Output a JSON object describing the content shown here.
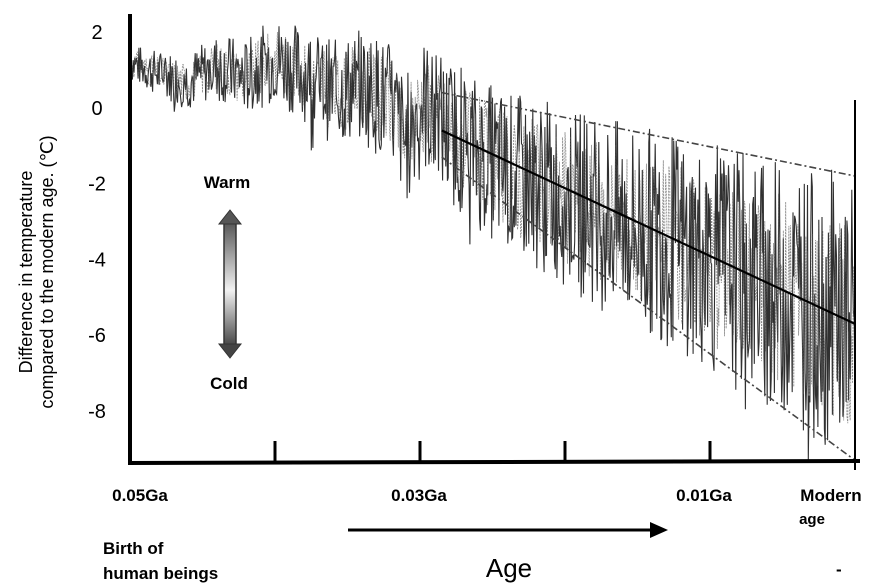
{
  "chart_data": {
    "type": "line",
    "title": "",
    "xlabel": "Age",
    "ylabel_lines": [
      "Difference in temperature",
      "compared to the modern age. (℃)"
    ],
    "ylim": [
      -9.3,
      2.4
    ],
    "y_ticks": [
      2,
      0,
      -2,
      -4,
      -6,
      -8
    ],
    "x_ticks": [
      {
        "value": 0.05,
        "label": "0.05Ga"
      },
      {
        "value": 0.03,
        "label": "0.03Ga"
      },
      {
        "value": 0.01,
        "label": "0.01Ga"
      },
      {
        "value": 0.0,
        "label": "Modern age"
      }
    ],
    "x_minor_ticks": [
      0.04,
      0.02
    ],
    "x_reversed": true,
    "grid": false,
    "legend": "none",
    "series": [
      {
        "x": [
          0.05,
          0.048,
          0.046,
          0.044,
          0.042,
          0.04,
          0.038,
          0.036,
          0.034,
          0.032,
          0.031,
          0.03,
          0.028,
          0.026,
          0.024,
          0.022,
          0.02,
          0.018,
          0.016,
          0.014,
          0.012,
          0.01,
          0.008,
          0.006,
          0.004,
          0.002,
          0.0
        ],
        "values": [
          1.2,
          0.9,
          0.7,
          1.1,
          0.8,
          1.3,
          0.9,
          0.4,
          0.6,
          0.1,
          -0.9,
          0.2,
          -0.6,
          -1.2,
          -1.7,
          -2.0,
          -2.3,
          -2.7,
          -3.0,
          -3.3,
          -3.6,
          -4.0,
          -4.3,
          -4.6,
          -5.0,
          -5.4,
          -5.7
        ],
        "style": "noisy-solid"
      },
      {
        "name": "",
        "x": [
          0.0285,
          0.0
        ],
        "values": [
          -0.6,
          -5.7
        ],
        "style": "solid"
      },
      {
        "name": "",
        "x": [
          0.0285,
          0.0
        ],
        "values": [
          0.4,
          -1.8
        ],
        "style": "dashed"
      },
      {
        "name": "",
        "x": [
          0.0285,
          0.0
        ],
        "values": [
          -1.3,
          -9.3
        ],
        "style": "dashed"
      }
    ]
  },
  "annotations": {
    "warm_label": "Warm",
    "cold_label": "Cold",
    "birth_label_line1": "Birth of",
    "birth_label_line2": "human beings",
    "age_arrow_label": "Age",
    "modern_line1": "Modern",
    "modern_line2": "age",
    "dash_mark": "-"
  }
}
